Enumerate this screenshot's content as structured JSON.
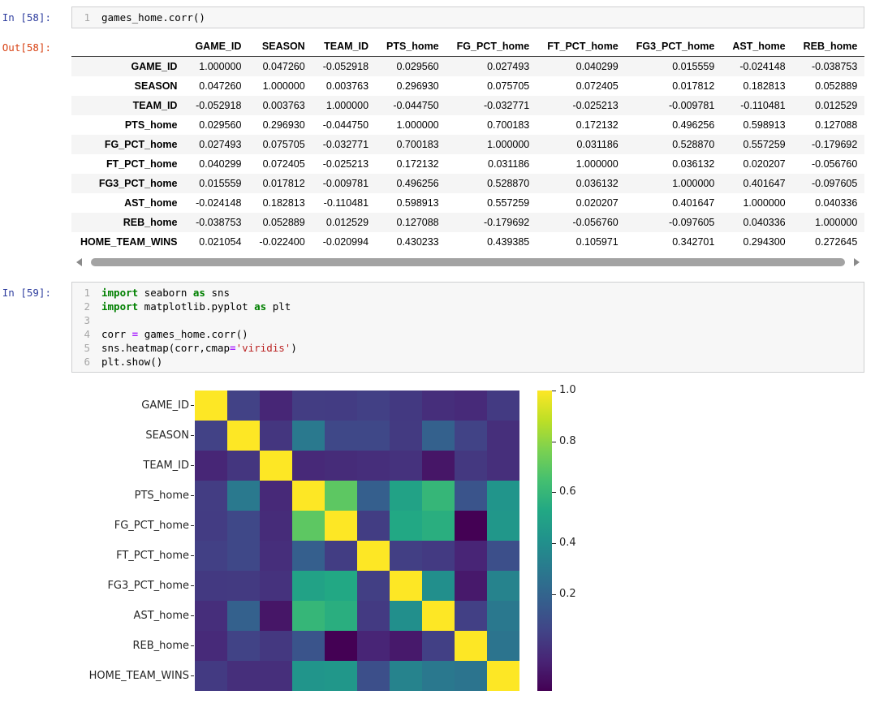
{
  "colors": {
    "prompt_in": "#303F9F",
    "prompt_out": "#D84315",
    "keyword": "#008000",
    "operator": "#AA22FF",
    "string": "#BA2121",
    "cell_background": "#f7f7f7",
    "row_stripe": "#f5f5f5"
  },
  "icons": {
    "scroll_left": "triangle-left",
    "scroll_right": "triangle-right"
  },
  "cells": {
    "in58": {
      "prompt": "In [58]:",
      "line_numbers": [
        "1"
      ],
      "code": "games_home.corr()"
    },
    "out58": {
      "prompt": "Out[58]:"
    },
    "in59": {
      "prompt": "In [59]:",
      "line_numbers": [
        "1",
        "2",
        "3",
        "4",
        "5",
        "6"
      ],
      "lines": [
        [
          {
            "t": "kw",
            "s": "import"
          },
          {
            "t": "pl",
            "s": " seaborn "
          },
          {
            "t": "kw",
            "s": "as"
          },
          {
            "t": "pl",
            "s": " sns"
          }
        ],
        [
          {
            "t": "kw",
            "s": "import"
          },
          {
            "t": "pl",
            "s": " matplotlib.pyplot "
          },
          {
            "t": "kw",
            "s": "as"
          },
          {
            "t": "pl",
            "s": " plt"
          }
        ],
        [],
        [
          {
            "t": "pl",
            "s": "corr "
          },
          {
            "t": "op",
            "s": "="
          },
          {
            "t": "pl",
            "s": " games_home.corr()"
          }
        ],
        [
          {
            "t": "pl",
            "s": "sns.heatmap(corr,cmap"
          },
          {
            "t": "op",
            "s": "="
          },
          {
            "t": "str",
            "s": "'viridis'"
          },
          {
            "t": "pl",
            "s": ")"
          }
        ],
        [
          {
            "t": "pl",
            "s": "plt.show()"
          }
        ]
      ]
    }
  },
  "table": {
    "corner_header": "",
    "columns": [
      "GAME_ID",
      "SEASON",
      "TEAM_ID",
      "PTS_home",
      "FG_PCT_home",
      "FT_PCT_home",
      "FG3_PCT_home",
      "AST_home",
      "REB_home",
      "HOME_TEAM_WINS"
    ],
    "row_labels": [
      "GAME_ID",
      "SEASON",
      "TEAM_ID",
      "PTS_home",
      "FG_PCT_home",
      "FT_PCT_home",
      "FG3_PCT_home",
      "AST_home",
      "REB_home",
      "HOME_TEAM_WINS"
    ],
    "value_format_decimals": 6
  },
  "chart_data": {
    "type": "heatmap",
    "title": "",
    "cmap": "viridis",
    "categories": [
      "GAME_ID",
      "SEASON",
      "TEAM_ID",
      "PTS_home",
      "FG_PCT_home",
      "FT_PCT_home",
      "FG3_PCT_home",
      "AST_home",
      "REB_home",
      "HOME_TEAM_WINS"
    ],
    "matrix": [
      [
        1.0,
        0.04726,
        -0.052918,
        0.02956,
        0.027493,
        0.040299,
        0.015559,
        -0.024148,
        -0.038753,
        0.021054
      ],
      [
        0.04726,
        1.0,
        0.003763,
        0.29693,
        0.075705,
        0.072405,
        0.017812,
        0.182813,
        0.052889,
        -0.0224
      ],
      [
        -0.052918,
        0.003763,
        1.0,
        -0.04475,
        -0.032771,
        -0.025213,
        -0.009781,
        -0.110481,
        0.012529,
        -0.020994
      ],
      [
        0.02956,
        0.29693,
        -0.04475,
        1.0,
        0.700183,
        0.172132,
        0.496256,
        0.598913,
        0.127088,
        0.430233
      ],
      [
        0.027493,
        0.075705,
        -0.032771,
        0.700183,
        1.0,
        0.031186,
        0.52887,
        0.557259,
        -0.179692,
        0.439385
      ],
      [
        0.040299,
        0.072405,
        -0.025213,
        0.172132,
        0.031186,
        1.0,
        0.036132,
        0.020207,
        -0.05676,
        0.105971
      ],
      [
        0.015559,
        0.017812,
        -0.009781,
        0.496256,
        0.52887,
        0.036132,
        1.0,
        0.401647,
        -0.097605,
        0.342701
      ],
      [
        -0.024148,
        0.182813,
        -0.110481,
        0.598913,
        0.557259,
        0.020207,
        0.401647,
        1.0,
        0.040336,
        0.2943
      ],
      [
        -0.038753,
        0.052889,
        0.012529,
        0.127088,
        -0.179692,
        -0.05676,
        -0.097605,
        0.040336,
        1.0,
        0.272645
      ],
      [
        0.021054,
        -0.0224,
        -0.020994,
        0.430233,
        0.439385,
        0.105971,
        0.342701,
        0.2943,
        0.272645,
        1.0
      ]
    ],
    "vmin": -0.179692,
    "vmax": 1.0,
    "colorbar_ticks": [
      1.0,
      0.8,
      0.6,
      0.4,
      0.2
    ],
    "legend_position": "right-colorbar",
    "grid": false
  }
}
